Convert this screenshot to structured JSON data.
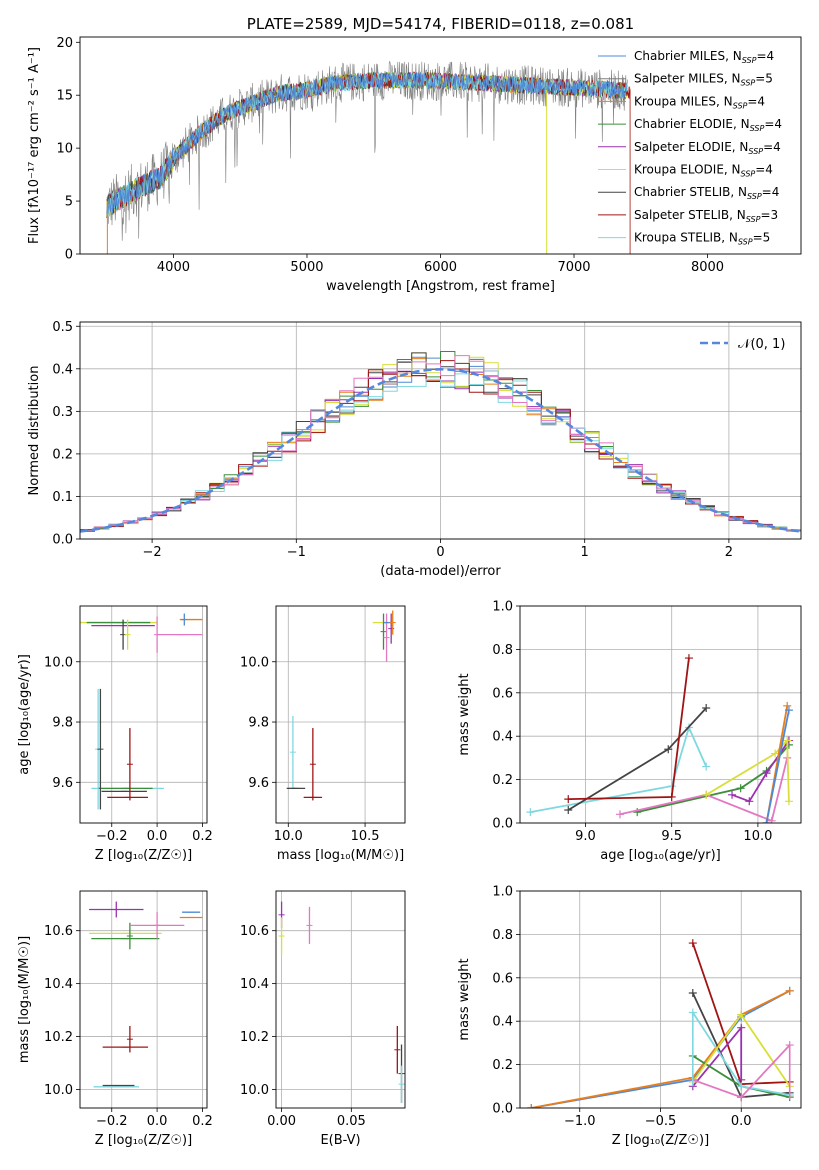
{
  "colors": {
    "chabrier_miles": "#4f8ad8",
    "salpeter_miles": "#7f7f7f",
    "kroupa_miles": "#e87e1a",
    "chabrier_elodie": "#3a8f3a",
    "salpeter_elodie": "#9b30b0",
    "kroupa_elodie": "#d8df3a",
    "chabrier_stelib": "#444444",
    "salpeter_stelib": "#a01414",
    "kroupa_stelib": "#7fd8e0",
    "pink": "#e377c2",
    "normal": "#5588dd",
    "grid": "#b0b0b0"
  },
  "chart_data": [
    {
      "id": "spectrum",
      "type": "line",
      "title": "PLATE=2589, MJD=54174, FIBERID=0118, z=0.081",
      "xlabel": "wavelength [Angstrom, rest frame]",
      "ylabel": "Flux [fλ10⁻¹⁷ erg cm⁻² s⁻¹ A⁻¹]",
      "xlim": [
        3300,
        8700
      ],
      "ylim": [
        0,
        20.5
      ],
      "xticks": [
        "4000",
        "5000",
        "6000",
        "7000",
        "8000"
      ],
      "yticks": [
        "0",
        "5",
        "10",
        "15",
        "20"
      ],
      "grid": false,
      "legend_position": "right",
      "legend": [
        {
          "name": "Chabrier MILES, N",
          "sub": "SSP",
          "tail": "=4",
          "color": "#4f8ad8"
        },
        {
          "name": "Salpeter MILES, N",
          "sub": "SSP",
          "tail": "=5",
          "color": "#7f7f7f"
        },
        {
          "name": "Kroupa MILES, N",
          "sub": "SSP",
          "tail": "=4",
          "color": "#e87e1a"
        },
        {
          "name": "Chabrier ELODIE, N",
          "sub": "SSP",
          "tail": "=4",
          "color": "#3a8f3a"
        },
        {
          "name": "Salpeter ELODIE, N",
          "sub": "SSP",
          "tail": "=4",
          "color": "#9b30b0"
        },
        {
          "name": "Kroupa ELODIE, N",
          "sub": "SSP",
          "tail": "=4",
          "color": "#d8df3a"
        },
        {
          "name": "Chabrier STELIB, N",
          "sub": "SSP",
          "tail": "=4",
          "color": "#444444"
        },
        {
          "name": "Salpeter STELIB, N",
          "sub": "SSP",
          "tail": "=3",
          "color": "#a01414"
        },
        {
          "name": "Kroupa STELIB, N",
          "sub": "SSP",
          "tail": "=5",
          "color": "#7fd8e0"
        }
      ],
      "continuum_x": [
        3500,
        3700,
        3900,
        4000,
        4200,
        4400,
        4600,
        4800,
        5000,
        5200,
        5500,
        5800,
        6100,
        6400,
        6700,
        7000,
        7200,
        7400
      ],
      "continuum_y": [
        4.5,
        6.0,
        7.2,
        9.0,
        11.5,
        13.3,
        14.3,
        15.2,
        15.5,
        16.1,
        16.4,
        16.4,
        16.3,
        16.1,
        15.9,
        15.7,
        15.6,
        15.4
      ]
    },
    {
      "id": "residuals",
      "type": "line",
      "title": "",
      "xlabel": "(data-model)/error",
      "ylabel": "Normed distribution",
      "xlim": [
        -2.5,
        2.5
      ],
      "ylim": [
        0,
        0.51
      ],
      "xticks": [
        "−2",
        "−1",
        "0",
        "1",
        "2"
      ],
      "yticks": [
        "0.0",
        "0.1",
        "0.2",
        "0.3",
        "0.4",
        "0.5"
      ],
      "grid": true,
      "legend_position": "top-right",
      "legend": [
        {
          "name": "𝒩(0, 1)",
          "color": "#5588dd"
        }
      ],
      "bin_width": 0.1
    },
    {
      "id": "age-vs-z",
      "type": "scatter",
      "xlabel": "Z [log₁₀(Z/Z☉)]",
      "ylabel": "age  [log₁₀(age/yr)]",
      "xlim": [
        -0.34,
        0.22
      ],
      "ylim": [
        9.465,
        10.185
      ],
      "xticks": [
        "−0.2",
        "0.0",
        "0.2"
      ],
      "yticks": [
        "9.6",
        "9.8",
        "10.0"
      ],
      "grid": true,
      "points": [
        {
          "x": -0.13,
          "y": 9.58,
          "xerr": 0.16,
          "yerr": 0.0,
          "c": "#7fd8e0"
        },
        {
          "x": -0.14,
          "y": 9.58,
          "xerr": 0.12,
          "yerr": 0.0,
          "c": "#3a8f3a"
        },
        {
          "x": -0.145,
          "y": 9.57,
          "xerr": 0.1,
          "yerr": 0.0,
          "c": "#444444"
        },
        {
          "x": -0.26,
          "y": 9.71,
          "xerr": 0.0,
          "yerr": 0.2,
          "c": "#7fd8e0"
        },
        {
          "x": -0.25,
          "y": 9.71,
          "xerr": 0.0,
          "yerr": 0.2,
          "c": "#444444"
        },
        {
          "x": -0.13,
          "y": 9.55,
          "xerr": 0.09,
          "yerr": 0.0,
          "c": "#a01414"
        },
        {
          "x": -0.12,
          "y": 9.66,
          "xerr": 0.0,
          "yerr": 0.12,
          "c": "#a01414"
        },
        {
          "x": -0.17,
          "y": 10.13,
          "xerr": 0.17,
          "yerr": 0.0,
          "c": "#d8df3a"
        },
        {
          "x": -0.17,
          "y": 10.13,
          "xerr": 0.14,
          "yerr": 0.0,
          "c": "#3a8f3a"
        },
        {
          "x": -0.15,
          "y": 10.12,
          "xerr": 0.14,
          "yerr": 0.0,
          "c": "#9b30b0"
        },
        {
          "x": -0.15,
          "y": 10.09,
          "xerr": 0.0,
          "yerr": 0.05,
          "c": "#444444"
        },
        {
          "x": -0.13,
          "y": 10.09,
          "xerr": 0.0,
          "yerr": 0.05,
          "c": "#d8df3a"
        },
        {
          "x": 0.1,
          "y": 10.09,
          "xerr": 0.1,
          "yerr": 0.0,
          "c": "#e377c2"
        },
        {
          "x": 0.0,
          "y": 10.09,
          "xerr": 0.0,
          "yerr": 0.06,
          "c": "#e377c2"
        },
        {
          "x": 0.15,
          "y": 10.14,
          "xerr": 0.05,
          "yerr": 0.0,
          "c": "#e87e1a"
        },
        {
          "x": 0.12,
          "y": 10.14,
          "xerr": 0.0,
          "yerr": 0.02,
          "c": "#4f8ad8"
        }
      ]
    },
    {
      "id": "age-vs-mass",
      "type": "scatter",
      "xlabel": "mass [log₁₀(M/M☉)]",
      "ylabel": "",
      "xlim": [
        9.92,
        10.76
      ],
      "ylim": [
        9.465,
        10.185
      ],
      "xticks": [
        "10.0",
        "10.5"
      ],
      "yticks": [
        "9.6",
        "9.8",
        "10.0"
      ],
      "grid": true,
      "points": [
        {
          "x": 10.02,
          "y": 9.58,
          "xerr": 0.03,
          "yerr": 0.0,
          "c": "#7fd8e0"
        },
        {
          "x": 10.03,
          "y": 9.7,
          "xerr": 0.0,
          "yerr": 0.12,
          "c": "#7fd8e0"
        },
        {
          "x": 10.05,
          "y": 9.58,
          "xerr": 0.06,
          "yerr": 0.0,
          "c": "#444444"
        },
        {
          "x": 10.16,
          "y": 9.55,
          "xerr": 0.06,
          "yerr": 0.0,
          "c": "#a01414"
        },
        {
          "x": 10.16,
          "y": 9.66,
          "xerr": 0.0,
          "yerr": 0.12,
          "c": "#a01414"
        },
        {
          "x": 10.6,
          "y": 10.13,
          "xerr": 0.05,
          "yerr": 0.0,
          "c": "#d8df3a"
        },
        {
          "x": 10.62,
          "y": 10.1,
          "xerr": 0.0,
          "yerr": 0.06,
          "c": "#3a8f3a"
        },
        {
          "x": 10.64,
          "y": 10.08,
          "xerr": 0.0,
          "yerr": 0.08,
          "c": "#e377c2"
        },
        {
          "x": 10.67,
          "y": 10.11,
          "xerr": 0.0,
          "yerr": 0.05,
          "c": "#9b30b0"
        },
        {
          "x": 10.65,
          "y": 10.13,
          "xerr": 0.03,
          "yerr": 0.0,
          "c": "#4f8ad8"
        },
        {
          "x": 10.68,
          "y": 10.13,
          "xerr": 0.0,
          "yerr": 0.04,
          "c": "#e87e1a"
        }
      ]
    },
    {
      "id": "weight-vs-age",
      "type": "line",
      "xlabel": "age  [log₁₀(age/yr)]",
      "ylabel": "mass weight",
      "xlim": [
        8.62,
        10.25
      ],
      "ylim": [
        0,
        1
      ],
      "xticks": [
        "9.0",
        "9.5",
        "10.0"
      ],
      "yticks": [
        "0.0",
        "0.2",
        "0.4",
        "0.6",
        "0.8",
        "1.0"
      ],
      "grid": true,
      "series": [
        {
          "c": "#7fd8e0",
          "x": [
            8.68,
            9.5,
            9.6,
            9.7
          ],
          "y": [
            0.05,
            0.17,
            0.44,
            0.26
          ]
        },
        {
          "c": "#444444",
          "x": [
            8.9,
            9.48,
            9.7
          ],
          "y": [
            0.06,
            0.34,
            0.53
          ]
        },
        {
          "c": "#a01414",
          "x": [
            8.9,
            9.5,
            9.6
          ],
          "y": [
            0.11,
            0.12,
            0.76
          ]
        },
        {
          "c": "#3a8f3a",
          "x": [
            9.3,
            9.9,
            10.05,
            10.18
          ],
          "y": [
            0.05,
            0.16,
            0.24,
            0.36
          ]
        },
        {
          "c": "#e377c2",
          "x": [
            9.2,
            9.7,
            10.08,
            10.17
          ],
          "y": [
            0.04,
            0.13,
            0.01,
            0.3
          ]
        },
        {
          "c": "#9b30b0",
          "x": [
            9.85,
            9.95,
            10.05,
            10.18
          ],
          "y": [
            0.13,
            0.1,
            0.23,
            0.38
          ]
        },
        {
          "c": "#d8df3a",
          "x": [
            9.7,
            10.1,
            10.17,
            10.18
          ],
          "y": [
            0.13,
            0.32,
            0.38,
            0.1
          ]
        },
        {
          "c": "#e87e1a",
          "x": [
            10.05,
            10.17
          ],
          "y": [
            0.0,
            0.54
          ]
        },
        {
          "c": "#4f8ad8",
          "x": [
            10.05,
            10.18
          ],
          "y": [
            0.0,
            0.52
          ]
        }
      ]
    },
    {
      "id": "mass-vs-z",
      "type": "scatter",
      "xlabel": "Z [log₁₀(Z/Z☉)]",
      "ylabel": "mass [log₁₀(M/M☉)]",
      "xlim": [
        -0.34,
        0.22
      ],
      "ylim": [
        9.93,
        10.75
      ],
      "xticks": [
        "−0.2",
        "0.0",
        "0.2"
      ],
      "yticks": [
        "10.0",
        "10.2",
        "10.4",
        "10.6"
      ],
      "grid": true,
      "points": [
        {
          "x": -0.18,
          "y": 10.68,
          "xerr": 0.12,
          "yerr": 0.0,
          "c": "#9b30b0"
        },
        {
          "x": -0.18,
          "y": 10.68,
          "xerr": 0.0,
          "yerr": 0.03,
          "c": "#9b30b0"
        },
        {
          "x": -0.14,
          "y": 10.59,
          "xerr": 0.16,
          "yerr": 0.0,
          "c": "#d8df3a"
        },
        {
          "x": -0.14,
          "y": 10.57,
          "xerr": 0.15,
          "yerr": 0.0,
          "c": "#3a8f3a"
        },
        {
          "x": -0.12,
          "y": 10.58,
          "xerr": 0.0,
          "yerr": 0.05,
          "c": "#3a8f3a"
        },
        {
          "x": 0.0,
          "y": 10.62,
          "xerr": 0.12,
          "yerr": 0.0,
          "c": "#e377c2"
        },
        {
          "x": 0.0,
          "y": 10.62,
          "xerr": 0.0,
          "yerr": 0.05,
          "c": "#e377c2"
        },
        {
          "x": 0.15,
          "y": 10.67,
          "xerr": 0.04,
          "yerr": 0.0,
          "c": "#4f8ad8"
        },
        {
          "x": 0.15,
          "y": 10.65,
          "xerr": 0.05,
          "yerr": 0.0,
          "c": "#e87e1a"
        },
        {
          "x": -0.14,
          "y": 10.16,
          "xerr": 0.1,
          "yerr": 0.0,
          "c": "#a01414"
        },
        {
          "x": -0.12,
          "y": 10.19,
          "xerr": 0.0,
          "yerr": 0.05,
          "c": "#a01414"
        },
        {
          "x": -0.18,
          "y": 10.01,
          "xerr": 0.1,
          "yerr": 0.0,
          "c": "#7fd8e0"
        },
        {
          "x": -0.17,
          "y": 10.015,
          "xerr": 0.07,
          "yerr": 0.0,
          "c": "#444444"
        }
      ]
    },
    {
      "id": "mass-vs-ebv",
      "type": "scatter",
      "xlabel": "E(B-V)",
      "ylabel": "",
      "xlim": [
        -0.004,
        0.0885
      ],
      "ylim": [
        9.93,
        10.75
      ],
      "xticks": [
        "0.00",
        "0.05"
      ],
      "yticks": [
        "10.0",
        "10.2",
        "10.4",
        "10.6"
      ],
      "grid": true,
      "points": [
        {
          "x": 0.0,
          "y": 10.66,
          "xerr": 0.0,
          "yerr": 0.05,
          "c": "#9b30b0"
        },
        {
          "x": 0.0,
          "y": 10.58,
          "xerr": 0.0,
          "yerr": 0.07,
          "c": "#d8df3a"
        },
        {
          "x": 0.02,
          "y": 10.62,
          "xerr": 0.0,
          "yerr": 0.07,
          "c": "#e377c2"
        },
        {
          "x": 0.083,
          "y": 10.15,
          "xerr": 0.0,
          "yerr": 0.09,
          "c": "#a01414"
        },
        {
          "x": 0.086,
          "y": 10.06,
          "xerr": 0.0,
          "yerr": 0.11,
          "c": "#444444"
        },
        {
          "x": 0.086,
          "y": 10.02,
          "xerr": 0.0,
          "yerr": 0.07,
          "c": "#7fd8e0"
        }
      ]
    },
    {
      "id": "weight-vs-z",
      "type": "line",
      "xlabel": "Z [log₁₀(Z/Z☉)]",
      "ylabel": "mass weight",
      "xlim": [
        -1.37,
        0.37
      ],
      "ylim": [
        0,
        1
      ],
      "xticks": [
        "−1.0",
        "−0.5",
        "0.0"
      ],
      "yticks": [
        "0.0",
        "0.2",
        "0.4",
        "0.6",
        "0.8",
        "1.0"
      ],
      "grid": true,
      "series": [
        {
          "c": "#4f8ad8",
          "x": [
            -1.3,
            -0.3,
            0.0,
            0.3
          ],
          "y": [
            0.0,
            0.13,
            0.42,
            0.54
          ]
        },
        {
          "c": "#e87e1a",
          "x": [
            -1.3,
            -0.3,
            0.0,
            0.3
          ],
          "y": [
            0.0,
            0.14,
            0.43,
            0.54
          ]
        },
        {
          "c": "#a01414",
          "x": [
            -0.3,
            0.0,
            0.3
          ],
          "y": [
            0.76,
            0.11,
            0.12
          ]
        },
        {
          "c": "#444444",
          "x": [
            -0.3,
            0.0,
            0.3
          ],
          "y": [
            0.53,
            0.05,
            0.07
          ]
        },
        {
          "c": "#9b30b0",
          "x": [
            -0.3,
            0.0,
            0.0
          ],
          "y": [
            0.1,
            0.37,
            0.13
          ]
        },
        {
          "c": "#3a8f3a",
          "x": [
            -0.3,
            0.0,
            0.3
          ],
          "y": [
            0.24,
            0.1,
            0.05
          ]
        },
        {
          "c": "#7fd8e0",
          "x": [
            -0.3,
            0.0,
            0.3
          ],
          "y": [
            0.44,
            0.1,
            0.06
          ]
        },
        {
          "c": "#d8df3a",
          "x": [
            -0.3,
            0.0,
            0.3
          ],
          "y": [
            0.12,
            0.43,
            0.1
          ]
        },
        {
          "c": "#e377c2",
          "x": [
            -0.3,
            0.0,
            0.3
          ],
          "y": [
            0.13,
            0.05,
            0.29
          ]
        }
      ],
      "vertical_marks": [
        {
          "x": -0.3,
          "ymin": 0.1,
          "ymax": 0.44,
          "c": "#7fd8e0"
        },
        {
          "x": 0.3,
          "ymin": 0.04,
          "ymax": 0.29,
          "c": "#e377c2"
        }
      ]
    }
  ]
}
